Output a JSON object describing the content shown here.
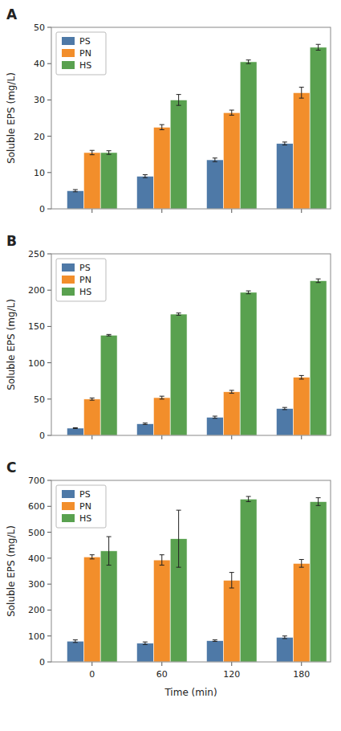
{
  "chart_data": [
    {
      "type": "bar",
      "title": "A",
      "ylabel": "Soluble EPS (mg/L)",
      "x": [
        0,
        60,
        120,
        180
      ],
      "xlim": [
        -35,
        205
      ],
      "xticks": [
        0,
        60,
        120,
        180
      ],
      "ylim": [
        0,
        50
      ],
      "yticks": [
        0,
        10,
        20,
        30,
        40,
        50
      ],
      "grid": false,
      "legend": "upper left",
      "tick_labels": "y",
      "series": [
        {
          "name": "PS",
          "values": [
            5.0,
            9.0,
            13.5,
            18.0
          ],
          "errors": [
            0.3,
            0.4,
            0.5,
            0.4
          ]
        },
        {
          "name": "PN",
          "values": [
            15.5,
            22.5,
            26.5,
            32.0
          ],
          "errors": [
            0.6,
            0.7,
            0.7,
            1.5
          ]
        },
        {
          "name": "HS",
          "values": [
            15.5,
            30.0,
            40.5,
            44.5
          ],
          "errors": [
            0.5,
            1.5,
            0.5,
            0.8
          ]
        }
      ]
    },
    {
      "type": "bar",
      "title": "B",
      "ylabel": "Soluble EPS (mg/L)",
      "x": [
        0,
        60,
        120,
        180
      ],
      "xlim": [
        -35,
        205
      ],
      "xticks": [
        0,
        60,
        120,
        180
      ],
      "ylim": [
        0,
        250
      ],
      "yticks": [
        0,
        50,
        100,
        150,
        200,
        250
      ],
      "grid": false,
      "legend": "upper left",
      "tick_labels": "y",
      "series": [
        {
          "name": "PS",
          "values": [
            10.0,
            16.0,
            25.0,
            37.0
          ],
          "errors": [
            0.5,
            1.0,
            1.5,
            1.5
          ]
        },
        {
          "name": "PN",
          "values": [
            50.0,
            52.0,
            60.0,
            80.0
          ],
          "errors": [
            1.5,
            2.0,
            2.0,
            2.5
          ]
        },
        {
          "name": "HS",
          "values": [
            138.0,
            167.0,
            197.0,
            213.0
          ],
          "errors": [
            1.0,
            1.5,
            2.0,
            2.5
          ]
        }
      ]
    },
    {
      "type": "bar",
      "title": "C",
      "ylabel": "Soluble EPS (mg/L)",
      "xlabel": "Time (min)",
      "x": [
        0,
        60,
        120,
        180
      ],
      "xlim": [
        -35,
        205
      ],
      "xticks": [
        0,
        60,
        120,
        180
      ],
      "ylim": [
        0,
        700
      ],
      "yticks": [
        0,
        100,
        200,
        300,
        400,
        500,
        600,
        700
      ],
      "grid": false,
      "legend": "upper left",
      "series": [
        {
          "name": "PS",
          "values": [
            80.0,
            72.0,
            82.0,
            95.0
          ],
          "errors": [
            5.0,
            5.0,
            3.0,
            5.0
          ]
        },
        {
          "name": "PN",
          "values": [
            405.0,
            393.0,
            315.0,
            380.0
          ],
          "errors": [
            8.0,
            20.0,
            30.0,
            15.0
          ]
        },
        {
          "name": "HS",
          "values": [
            428.0,
            475.0,
            628.0,
            618.0
          ],
          "errors": [
            55.0,
            110.0,
            10.0,
            15.0
          ]
        }
      ]
    }
  ]
}
